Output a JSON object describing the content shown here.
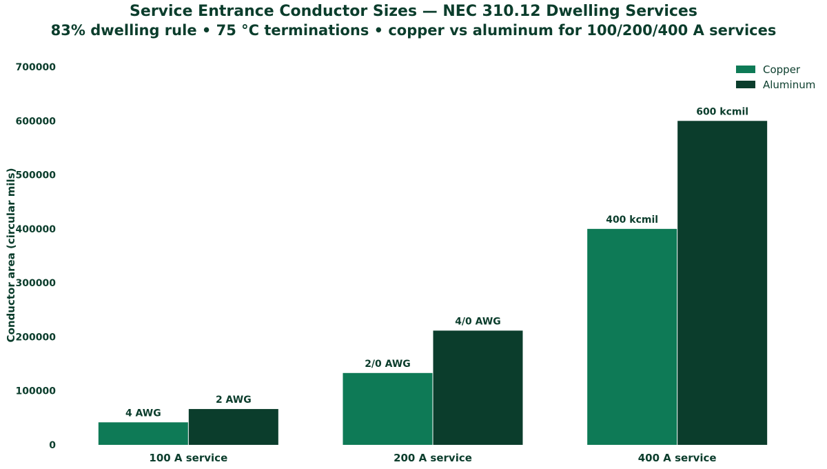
{
  "chart_data": {
    "type": "bar",
    "title": "Service Entrance Conductor Sizes — NEC 310.12 Dwelling Services",
    "subtitle": "83% dwelling rule  •  75 °C terminations  •  copper vs aluminum for 100/200/400 A services",
    "xlabel": "",
    "ylabel": "Conductor area (circular mils)",
    "ylim": [
      0,
      700000
    ],
    "yticks": [
      0,
      100000,
      200000,
      300000,
      400000,
      500000,
      600000,
      700000
    ],
    "grid": false,
    "legend_position": "top-right",
    "categories": [
      "100 A service",
      "200 A service",
      "400 A service"
    ],
    "series": [
      {
        "name": "Copper",
        "color": "#0e7a56",
        "values": [
          41740,
          133100,
          400000
        ],
        "labels": [
          "4 AWG",
          "2/0 AWG",
          "400 kcmil"
        ]
      },
      {
        "name": "Aluminum",
        "color": "#0b3d2c",
        "values": [
          66360,
          211600,
          600000
        ],
        "labels": [
          "2 AWG",
          "4/0 AWG",
          "600 kcmil"
        ]
      }
    ]
  }
}
